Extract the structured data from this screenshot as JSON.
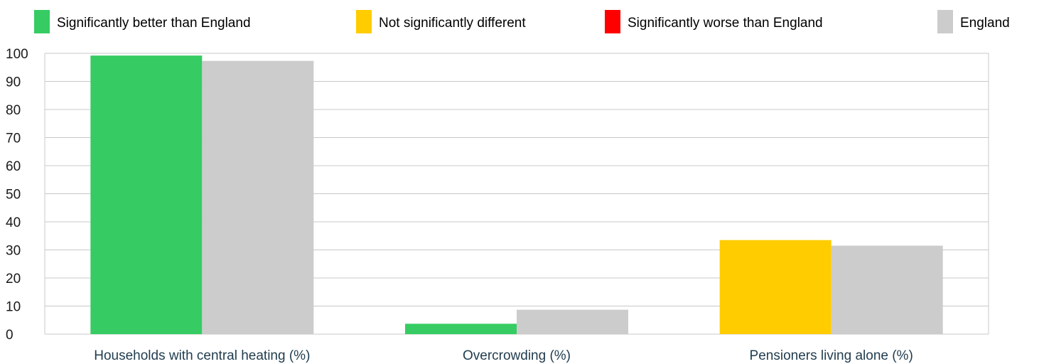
{
  "chart_data": {
    "type": "bar",
    "title": "",
    "xlabel": "",
    "ylabel": "",
    "ylim": [
      0,
      100
    ],
    "yticks": [
      0,
      10,
      20,
      30,
      40,
      50,
      60,
      70,
      80,
      90,
      100
    ],
    "grid": true,
    "legend_position": "top",
    "categories": [
      "Households with central heating (%)",
      "Overcrowding (%)",
      "Pensioners living alone (%)"
    ],
    "series": [
      {
        "values": [
          99.2,
          3.7,
          33.5
        ],
        "status": [
          "better",
          "better",
          "not_different"
        ]
      },
      {
        "name": "England",
        "values": [
          97.3,
          8.7,
          31.5
        ],
        "color": "#cccccc"
      }
    ],
    "legend": [
      {
        "key": "better",
        "label": "Significantly better than England",
        "color": "#36cc63"
      },
      {
        "key": "not_different",
        "label": "Not significantly different",
        "color": "#ffcc00"
      },
      {
        "key": "worse",
        "label": "Significantly worse than England",
        "color": "#ff0000"
      },
      {
        "key": "england",
        "label": "England",
        "color": "#cccccc"
      }
    ],
    "status_colors": {
      "better": "#36cc63",
      "not_different": "#ffcc00",
      "worse": "#ff0000"
    },
    "colors": {
      "gridline": "#c8c8c8",
      "axis_text": "#1a1a1a",
      "category_text": "#1f3b4d"
    }
  }
}
